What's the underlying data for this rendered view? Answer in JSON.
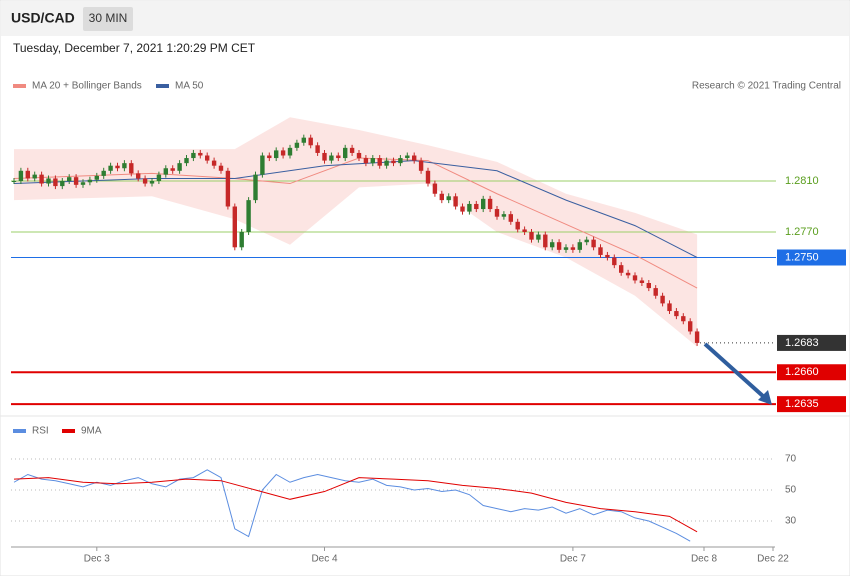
{
  "header": {
    "symbol": "USD/CAD",
    "timeframe": "30 MIN",
    "datetime": "Tuesday, December 7, 2021 1:20:29 PM CET"
  },
  "chart_data": [
    {
      "type": "candlestick",
      "credit": "Research © 2021 Trading Central",
      "up_color": "#2e7d32",
      "down_color": "#c62828",
      "closes": [
        1.281,
        1.2818,
        1.2812,
        1.2815,
        1.2808,
        1.2812,
        1.2806,
        1.281,
        1.2813,
        1.2807,
        1.2809,
        1.2811,
        1.2814,
        1.2818,
        1.2822,
        1.282,
        1.2824,
        1.2816,
        1.2812,
        1.2808,
        1.281,
        1.2815,
        1.282,
        1.2818,
        1.2824,
        1.2828,
        1.2832,
        1.283,
        1.2826,
        1.2822,
        1.2818,
        1.279,
        1.2758,
        1.277,
        1.2795,
        1.2815,
        1.283,
        1.2828,
        1.2834,
        1.283,
        1.2836,
        1.284,
        1.2844,
        1.2838,
        1.2832,
        1.2826,
        1.283,
        1.2828,
        1.2836,
        1.2832,
        1.2828,
        1.2824,
        1.2828,
        1.2822,
        1.2826,
        1.2824,
        1.2828,
        1.283,
        1.2826,
        1.2818,
        1.2808,
        1.28,
        1.2795,
        1.2798,
        1.279,
        1.2786,
        1.2792,
        1.2788,
        1.2796,
        1.2788,
        1.2782,
        1.2784,
        1.2778,
        1.2772,
        1.277,
        1.2764,
        1.2768,
        1.2758,
        1.2762,
        1.2756,
        1.2758,
        1.2756,
        1.2762,
        1.2764,
        1.2758,
        1.2752,
        1.275,
        1.2744,
        1.2738,
        1.2736,
        1.2732,
        1.273,
        1.2726,
        1.272,
        1.2714,
        1.2708,
        1.2704,
        1.27,
        1.2692,
        1.2683
      ],
      "series": [
        {
          "name": "MA 20 + Bollinger Bands",
          "color": "#f08a80",
          "x": [
            0,
            20,
            32,
            40,
            50,
            60,
            70,
            80,
            90,
            99
          ],
          "values": [
            1.2812,
            1.2816,
            1.2812,
            1.2808,
            1.2828,
            1.2826,
            1.28,
            1.2776,
            1.2752,
            1.2726
          ],
          "upper": [
            1.2835,
            1.2835,
            1.2835,
            1.286,
            1.285,
            1.2838,
            1.2825,
            1.28,
            1.2785,
            1.2768
          ],
          "lower": [
            1.2795,
            1.2798,
            1.278,
            1.276,
            1.2805,
            1.2808,
            1.277,
            1.275,
            1.272,
            1.268
          ]
        },
        {
          "name": "MA 50",
          "color": "#3a5fa0",
          "x": [
            0,
            20,
            32,
            45,
            58,
            70,
            80,
            90,
            99
          ],
          "values": [
            1.2808,
            1.2812,
            1.2812,
            1.2822,
            1.2826,
            1.2818,
            1.2795,
            1.2775,
            1.275
          ]
        }
      ],
      "levels": [
        {
          "value": 1.281,
          "label": "1.2810",
          "color": "#9bcf6a",
          "style": "plain"
        },
        {
          "value": 1.277,
          "label": "1.2770",
          "color": "#9bcf6a",
          "style": "plain"
        },
        {
          "value": 1.275,
          "label": "1.2750",
          "color": "#1e6ee6",
          "style": "box"
        },
        {
          "value": 1.2683,
          "label": "1.2683",
          "color": "#333333",
          "style": "dotted"
        },
        {
          "value": 1.266,
          "label": "1.2660",
          "color": "#e00000",
          "style": "thick"
        },
        {
          "value": 1.2635,
          "label": "1.2635",
          "color": "#e00000",
          "style": "thick"
        }
      ],
      "ylim": [
        1.263,
        1.288
      ],
      "xlim": [
        0,
        110
      ]
    },
    {
      "type": "line",
      "series": [
        {
          "name": "RSI",
          "color": "#5b8de0",
          "x": [
            0,
            2,
            4,
            6,
            8,
            10,
            12,
            14,
            16,
            18,
            20,
            22,
            24,
            26,
            28,
            30,
            32,
            34,
            36,
            38,
            40,
            42,
            44,
            46,
            48,
            50,
            52,
            54,
            56,
            58,
            60,
            62,
            64,
            66,
            68,
            70,
            72,
            74,
            76,
            78,
            80,
            82,
            84,
            86,
            88,
            90,
            92,
            94,
            96,
            98
          ],
          "values": [
            55,
            60,
            57,
            56,
            54,
            52,
            55,
            53,
            56,
            58,
            54,
            52,
            57,
            58,
            63,
            58,
            25,
            20,
            50,
            60,
            55,
            58,
            60,
            58,
            56,
            55,
            57,
            53,
            52,
            50,
            51,
            49,
            50,
            47,
            40,
            38,
            36,
            38,
            37,
            39,
            35,
            38,
            34,
            37,
            36,
            32,
            30,
            26,
            22,
            17
          ]
        },
        {
          "name": "9MA",
          "color": "#e00000",
          "x": [
            0,
            5,
            10,
            15,
            20,
            25,
            30,
            35,
            40,
            45,
            50,
            55,
            60,
            65,
            70,
            75,
            80,
            85,
            90,
            95,
            99
          ],
          "values": [
            57,
            58,
            55,
            54,
            55,
            57,
            56,
            50,
            44,
            49,
            58,
            57,
            56,
            53,
            51,
            48,
            42,
            38,
            36,
            33,
            23
          ]
        }
      ],
      "ylim": [
        13,
        80
      ],
      "yticks": [
        70,
        50,
        30
      ],
      "xlim": [
        0,
        110
      ],
      "xticks": [
        {
          "value": 12,
          "label": "Dec 3"
        },
        {
          "value": 45,
          "label": "Dec 4"
        },
        {
          "value": 81,
          "label": "Dec 7"
        },
        {
          "value": 100,
          "label": "Dec 8"
        },
        {
          "value": 110,
          "label": "Dec 22"
        }
      ]
    }
  ]
}
